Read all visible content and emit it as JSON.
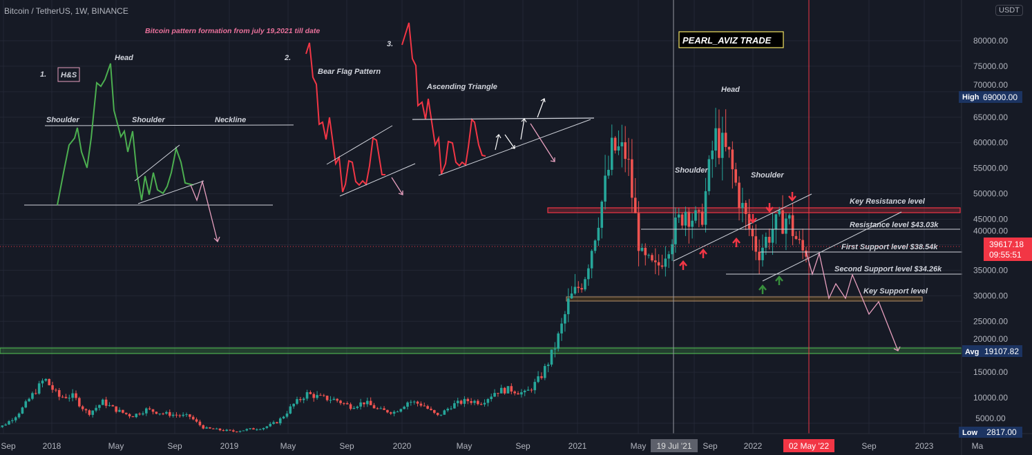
{
  "header": {
    "title": "Bitcoin / TetherUS, 1W, BINANCE",
    "currency": "USDT"
  },
  "annotations": {
    "subtitle": "Bitcoin pattern formation from july 19,2021 till date",
    "brand": "PEARL_AVIZ TRADE",
    "p1_num": "1.",
    "p1_name": "H&S",
    "p1_head": "Head",
    "p1_shoulder_l": "Shoulder",
    "p1_shoulder_r": "Shoulder",
    "p1_neckline": "Neckline",
    "p2_num": "2.",
    "p2_name": "Bear Flag Pattern",
    "p3_num": "3.",
    "p3_name": "Ascending Triangle",
    "main_head": "Head",
    "main_shoulder_l": "Shoulder",
    "main_shoulder_r": "Shoulder",
    "key_resistance": "Key Resistance level",
    "resistance": "Resistance level $43.03k",
    "first_support": "First Support level $38.54k",
    "second_support": "Second Support level $34.26k",
    "key_support": "Key Support level"
  },
  "price_axis": {
    "ticks": [
      "80000.00",
      "75000.00",
      "70000.00",
      "65000.00",
      "60000.00",
      "55000.00",
      "50000.00",
      "45000.00",
      "40000.00",
      "35000.00",
      "30000.00",
      "25000.00",
      "20000.00",
      "15000.00",
      "10000.00",
      "5000.00"
    ],
    "high_label": "High",
    "high_value": "69000.00",
    "avg_label": "Avg",
    "avg_value": "19107.82",
    "low_label": "Low",
    "low_value": "2817.00",
    "last_price": "39617.18",
    "countdown": "09:55:51"
  },
  "time_axis": {
    "ticks": [
      "Sep",
      "2018",
      "May",
      "Sep",
      "2019",
      "May",
      "Sep",
      "2020",
      "May",
      "Sep",
      "2021",
      "May",
      "Sep",
      "2022",
      "Sep",
      "2023",
      "Ma"
    ],
    "cursor_label": "19 Jul '21",
    "marker_label": "02 May '22"
  },
  "colors": {
    "up": "#26a69a",
    "down": "#ef5350",
    "background": "#161a25",
    "grid": "#232735",
    "accent_red": "#f23645",
    "axis_badge": "#1c3462",
    "pink": "#e8719a"
  },
  "chart_data": {
    "type": "candlestick",
    "interval": "1W",
    "ylim": [
      2817,
      85000
    ],
    "levels": {
      "key_resistance": 47000,
      "resistance": 43030,
      "first_support": 38540,
      "second_support": 34260,
      "key_support": 29500,
      "avg": 19107.82,
      "high": 69000,
      "low": 2817,
      "last": 39617.18
    },
    "monthly_close": [
      [
        "2017-09",
        4300
      ],
      [
        "2017-10",
        6400
      ],
      [
        "2017-11",
        10000
      ],
      [
        "2017-12",
        13800
      ],
      [
        "2018-01",
        10200
      ],
      [
        "2018-02",
        10300
      ],
      [
        "2018-03",
        6900
      ],
      [
        "2018-04",
        9200
      ],
      [
        "2018-05",
        7500
      ],
      [
        "2018-06",
        6400
      ],
      [
        "2018-07",
        7700
      ],
      [
        "2018-08",
        7000
      ],
      [
        "2018-09",
        6600
      ],
      [
        "2018-10",
        6300
      ],
      [
        "2018-11",
        4000
      ],
      [
        "2018-12",
        3700
      ],
      [
        "2019-01",
        3400
      ],
      [
        "2019-02",
        3800
      ],
      [
        "2019-03",
        4100
      ],
      [
        "2019-04",
        5300
      ],
      [
        "2019-05",
        8500
      ],
      [
        "2019-06",
        10800
      ],
      [
        "2019-07",
        10000
      ],
      [
        "2019-08",
        9600
      ],
      [
        "2019-09",
        8300
      ],
      [
        "2019-10",
        9150
      ],
      [
        "2019-11",
        7550
      ],
      [
        "2019-12",
        7200
      ],
      [
        "2020-01",
        9350
      ],
      [
        "2020-02",
        8600
      ],
      [
        "2020-03",
        6400
      ],
      [
        "2020-04",
        8600
      ],
      [
        "2020-05",
        9450
      ],
      [
        "2020-06",
        9130
      ],
      [
        "2020-07",
        11300
      ],
      [
        "2020-08",
        11650
      ],
      [
        "2020-09",
        10780
      ],
      [
        "2020-10",
        13800
      ],
      [
        "2020-11",
        19700
      ],
      [
        "2020-12",
        29000
      ],
      [
        "2021-01",
        33100
      ],
      [
        "2021-02",
        45100
      ],
      [
        "2021-03",
        58800
      ],
      [
        "2021-04",
        57700
      ],
      [
        "2021-05",
        37300
      ],
      [
        "2021-06",
        35000
      ],
      [
        "2021-07",
        41500
      ],
      [
        "2021-08",
        47100
      ],
      [
        "2021-09",
        43800
      ],
      [
        "2021-10",
        61300
      ],
      [
        "2021-11",
        57000
      ],
      [
        "2021-12",
        46300
      ],
      [
        "2022-01",
        38500
      ],
      [
        "2022-02",
        43200
      ],
      [
        "2022-03",
        45500
      ],
      [
        "2022-04",
        38600
      ],
      [
        "2022-05",
        39617
      ]
    ]
  }
}
